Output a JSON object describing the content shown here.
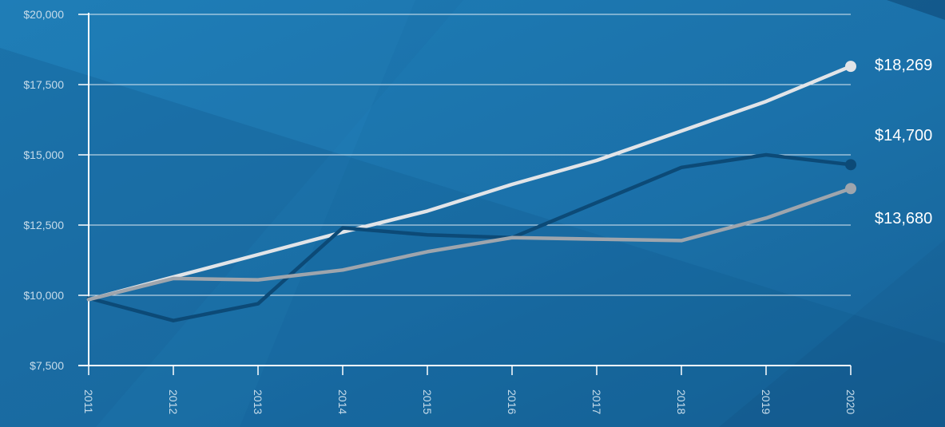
{
  "chart_data": {
    "type": "line",
    "title": "",
    "xlabel": "",
    "ylabel": "",
    "categories": [
      "2011",
      "2012",
      "2013",
      "2014",
      "2015",
      "2016",
      "2017",
      "2018",
      "2019",
      "2020"
    ],
    "ylim": [
      7500,
      20000
    ],
    "y_ticks": [
      7500,
      10000,
      12500,
      15000,
      17500,
      20000
    ],
    "y_tick_labels": [
      "$7,500",
      "$10,000",
      "$12,500",
      "$15,000",
      "$17,500",
      "$20,000"
    ],
    "grid": true,
    "legend": "none",
    "series": [
      {
        "color": "#e1e4e8",
        "values": [
          9850,
          10650,
          11450,
          12250,
          13000,
          13950,
          14800,
          15850,
          16900,
          18150
        ],
        "end_label": "$18,269"
      },
      {
        "color": "#0c4a77",
        "values": [
          9900,
          9100,
          9700,
          12400,
          12150,
          12050,
          13300,
          14550,
          15000,
          14650
        ],
        "end_label": "$14,700"
      },
      {
        "color": "#9ea5ad",
        "values": [
          9850,
          10600,
          10550,
          10900,
          11550,
          12050,
          12000,
          11950,
          12750,
          13800
        ],
        "end_label": "$13,680"
      }
    ]
  },
  "colors": {
    "background_base": "#1a6ea3",
    "axis": "#ffffff",
    "gridline": "#ffffff",
    "tick_text": "#c7dcea",
    "end_label_text": "#ffffff"
  }
}
